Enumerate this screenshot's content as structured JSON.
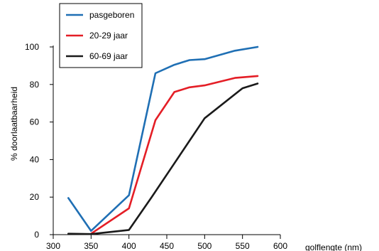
{
  "chart_data": {
    "type": "line",
    "title": "",
    "xlabel": "golflengte (nm)",
    "ylabel": "% doorlaatbaarheid",
    "xlim": [
      300,
      600
    ],
    "ylim": [
      0,
      100
    ],
    "x_ticks": [
      300,
      350,
      400,
      450,
      500,
      550,
      600
    ],
    "y_ticks": [
      0,
      20,
      40,
      60,
      80,
      100
    ],
    "grid": false,
    "legend_position": "top-left",
    "series": [
      {
        "name": "pasgeboren",
        "color": "#1f6fb4",
        "points": [
          [
            320,
            19.5
          ],
          [
            350,
            2
          ],
          [
            400,
            21
          ],
          [
            435,
            86
          ],
          [
            460,
            90.5
          ],
          [
            480,
            93
          ],
          [
            500,
            93.5
          ],
          [
            540,
            98
          ],
          [
            570,
            100
          ]
        ]
      },
      {
        "name": "20-29 jaar",
        "color": "#e41e26",
        "points": [
          [
            350,
            0.5
          ],
          [
            400,
            14
          ],
          [
            435,
            61
          ],
          [
            460,
            76
          ],
          [
            480,
            78.5
          ],
          [
            500,
            79.5
          ],
          [
            540,
            83.5
          ],
          [
            570,
            84.5
          ]
        ]
      },
      {
        "name": "60-69 jaar",
        "color": "#1a1a1a",
        "points": [
          [
            320,
            0.5
          ],
          [
            350,
            0.3
          ],
          [
            400,
            2.5
          ],
          [
            430,
            20
          ],
          [
            460,
            38
          ],
          [
            480,
            50
          ],
          [
            500,
            62
          ],
          [
            550,
            78
          ],
          [
            570,
            80.5
          ]
        ]
      }
    ]
  }
}
